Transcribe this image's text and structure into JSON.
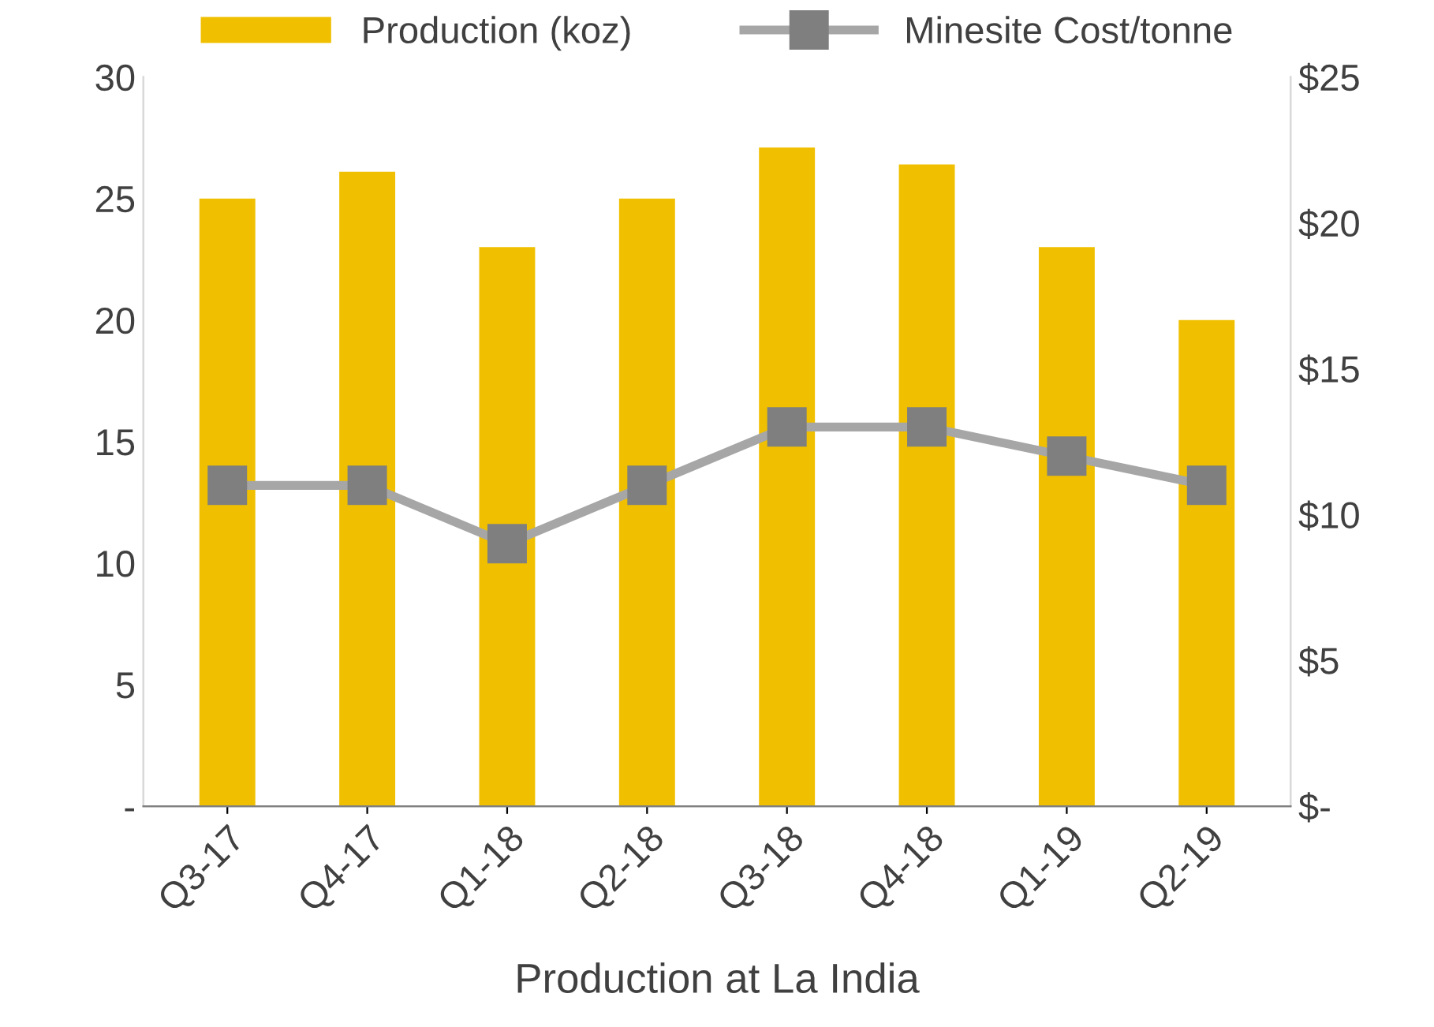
{
  "chart_data": {
    "type": "bar",
    "categories": [
      "Q3-17",
      "Q4-17",
      "Q1-18",
      "Q2-18",
      "Q3-18",
      "Q4-18",
      "Q1-19",
      "Q2-19"
    ],
    "series": [
      {
        "name": "Production (koz)",
        "color": "#f0c000",
        "values": [
          25,
          26.1,
          23,
          25,
          27.1,
          26.4,
          23,
          20
        ]
      },
      {
        "name": "Minesite Cost/tonne",
        "type": "line",
        "axis": "y2",
        "color": "#a6a6a6",
        "marker": "square",
        "values": [
          11,
          11,
          9,
          11,
          13,
          13,
          12,
          11
        ]
      }
    ],
    "ylim": [
      0,
      30
    ],
    "yticks": [
      {
        "value": 0,
        "label": "-"
      },
      5,
      10,
      15,
      20,
      25,
      30
    ],
    "y2lim": [
      0,
      25
    ],
    "y2ticks": [
      {
        "value": 0,
        "label": "$-"
      },
      {
        "value": 5,
        "label": "$5"
      },
      {
        "value": 10,
        "label": "$10"
      },
      {
        "value": 15,
        "label": "$15"
      },
      {
        "value": 20,
        "label": "$20"
      },
      {
        "value": 25,
        "label": "$25"
      }
    ],
    "grid": false,
    "legend": "top",
    "annotations": [
      "Production at La India"
    ]
  }
}
